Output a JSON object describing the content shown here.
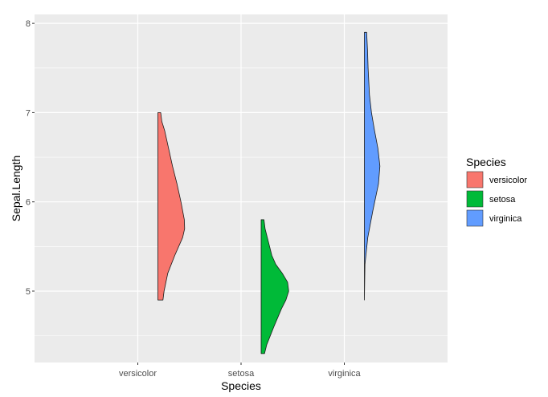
{
  "chart_data": {
    "type": "half-violin",
    "xlabel": "Species",
    "ylabel": "Sepal.Length",
    "categories": [
      "versicolor",
      "setosa",
      "virginica"
    ],
    "yticks": [
      5,
      6,
      7,
      8
    ],
    "ylim": [
      4.2,
      8.1
    ],
    "grid": true,
    "legend": {
      "title": "Species",
      "position": "right",
      "entries": [
        "versicolor",
        "setosa",
        "virginica"
      ]
    },
    "series": [
      {
        "category": "versicolor",
        "color": "#F8766D",
        "range": [
          4.9,
          7.0
        ],
        "density": [
          [
            4.9,
            0.18
          ],
          [
            5.0,
            0.22
          ],
          [
            5.2,
            0.35
          ],
          [
            5.4,
            0.6
          ],
          [
            5.6,
            0.88
          ],
          [
            5.7,
            0.95
          ],
          [
            5.8,
            0.94
          ],
          [
            6.0,
            0.82
          ],
          [
            6.2,
            0.68
          ],
          [
            6.4,
            0.52
          ],
          [
            6.6,
            0.38
          ],
          [
            6.8,
            0.24
          ],
          [
            6.9,
            0.14
          ],
          [
            7.0,
            0.1
          ]
        ]
      },
      {
        "category": "setosa",
        "color": "#00BA38",
        "range": [
          4.3,
          5.8
        ],
        "density": [
          [
            4.3,
            0.12
          ],
          [
            4.4,
            0.2
          ],
          [
            4.6,
            0.45
          ],
          [
            4.8,
            0.72
          ],
          [
            4.9,
            0.88
          ],
          [
            5.0,
            0.98
          ],
          [
            5.1,
            0.94
          ],
          [
            5.2,
            0.75
          ],
          [
            5.3,
            0.52
          ],
          [
            5.4,
            0.38
          ],
          [
            5.5,
            0.3
          ],
          [
            5.6,
            0.22
          ],
          [
            5.7,
            0.14
          ],
          [
            5.8,
            0.1
          ]
        ]
      },
      {
        "category": "virginica",
        "color": "#619CFF",
        "range": [
          4.9,
          7.9
        ],
        "density": [
          [
            4.9,
            0.0
          ],
          [
            5.3,
            0.02
          ],
          [
            5.6,
            0.12
          ],
          [
            5.9,
            0.3
          ],
          [
            6.2,
            0.5
          ],
          [
            6.4,
            0.55
          ],
          [
            6.6,
            0.48
          ],
          [
            6.8,
            0.36
          ],
          [
            7.0,
            0.25
          ],
          [
            7.2,
            0.18
          ],
          [
            7.5,
            0.13
          ],
          [
            7.7,
            0.11
          ],
          [
            7.9,
            0.08
          ]
        ]
      }
    ]
  }
}
